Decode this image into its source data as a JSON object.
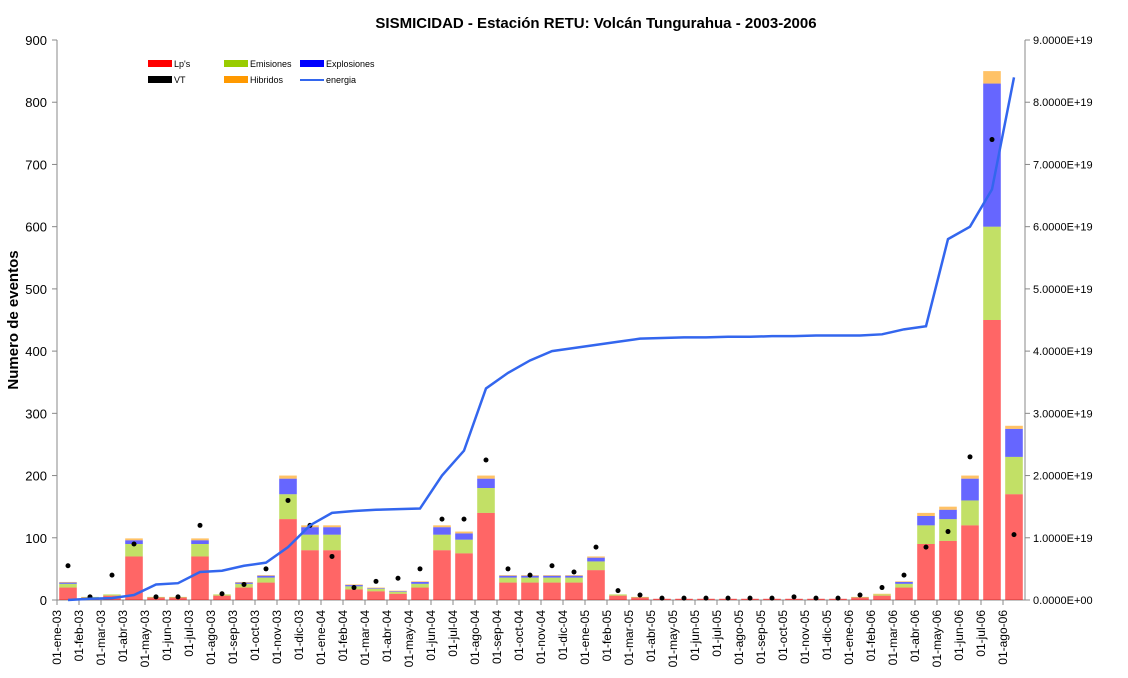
{
  "chart_data": {
    "type": "bar",
    "title": "SISMICIDAD - Estación RETU:    Volcán Tungurahua - 2003-2006",
    "y_label": "Numero de eventos",
    "categories": [
      "01-ene-03",
      "01-feb-03",
      "01-mar-03",
      "01-abr-03",
      "01-may-03",
      "01-jun-03",
      "01-jul-03",
      "01-ago-03",
      "01-sep-03",
      "01-oct-03",
      "01-nov-03",
      "01-dic-03",
      "01-ene-04",
      "01-feb-04",
      "01-mar-04",
      "01-abr-04",
      "01-may-04",
      "01-jun-04",
      "01-jul-04",
      "01-ago-04",
      "01-sep-04",
      "01-oct-04",
      "01-nov-04",
      "01-dic-04",
      "01-ene-05",
      "01-feb-05",
      "01-mar-05",
      "01-abr-05",
      "01-may-05",
      "01-jun-05",
      "01-jul-05",
      "01-ago-05",
      "01-sep-05",
      "01-oct-05",
      "01-nov-05",
      "01-dic-05",
      "01-ene-06",
      "01-feb-06",
      "01-mar-06",
      "01-abr-06",
      "01-may-06",
      "01-jun-06",
      "01-jul-06",
      "01-ago-06"
    ],
    "ylim": [
      0,
      900
    ],
    "yticks": [
      0,
      100,
      200,
      300,
      400,
      500,
      600,
      700,
      800,
      900
    ],
    "y2lim": [
      0,
      9e+19
    ],
    "y2ticks": [
      {
        "value": 0,
        "label": "0.0000E+00"
      },
      {
        "value": 1e+19,
        "label": "1.0000E+19"
      },
      {
        "value": 2e+19,
        "label": "2.0000E+19"
      },
      {
        "value": 3e+19,
        "label": "3.0000E+19"
      },
      {
        "value": 4e+19,
        "label": "4.0000E+19"
      },
      {
        "value": 5e+19,
        "label": "5.0000E+19"
      },
      {
        "value": 6e+19,
        "label": "6.0000E+19"
      },
      {
        "value": 7e+19,
        "label": "7.0000E+19"
      },
      {
        "value": 8e+19,
        "label": "8.0000E+19"
      },
      {
        "value": 9e+19,
        "label": "9.0000E+19"
      }
    ],
    "stacked": true,
    "grid": false,
    "legend": "upper-left",
    "series": [
      {
        "name": "Lp's",
        "color": "#ff0000",
        "type": "bar",
        "values": [
          20,
          4,
          7,
          70,
          4,
          4,
          70,
          7,
          20,
          28,
          130,
          80,
          80,
          17,
          14,
          10,
          20,
          80,
          75,
          140,
          28,
          28,
          28,
          28,
          48,
          7,
          4,
          2,
          2,
          2,
          2,
          2,
          2,
          2,
          2,
          2,
          4,
          7,
          20,
          90,
          95,
          120,
          450,
          170
        ]
      },
      {
        "name": "Emisiones",
        "color": "#99cc00",
        "type": "bar",
        "values": [
          6,
          1,
          2,
          20,
          1,
          1,
          20,
          2,
          6,
          8,
          40,
          25,
          25,
          5,
          4,
          3,
          6,
          25,
          22,
          40,
          8,
          8,
          8,
          8,
          14,
          2,
          1,
          0,
          0,
          0,
          0,
          0,
          0,
          0,
          0,
          0,
          1,
          2,
          6,
          30,
          35,
          40,
          150,
          60
        ]
      },
      {
        "name": "Explosiones",
        "color": "#0000ff",
        "type": "bar",
        "values": [
          2,
          0,
          0,
          6,
          0,
          0,
          6,
          0,
          2,
          3,
          25,
          12,
          12,
          2,
          1,
          1,
          3,
          12,
          10,
          15,
          3,
          3,
          3,
          3,
          6,
          0,
          0,
          0,
          0,
          0,
          0,
          0,
          0,
          0,
          0,
          0,
          0,
          0,
          3,
          15,
          15,
          35,
          230,
          45
        ]
      },
      {
        "name": "VT",
        "color": "#000000",
        "type": "dot",
        "values": [
          55,
          5,
          40,
          90,
          5,
          5,
          120,
          10,
          25,
          50,
          160,
          120,
          70,
          20,
          30,
          35,
          50,
          130,
          130,
          225,
          50,
          40,
          55,
          45,
          85,
          15,
          8,
          3,
          3,
          3,
          3,
          3,
          3,
          5,
          3,
          3,
          8,
          20,
          40,
          85,
          110,
          230,
          740,
          105
        ]
      },
      {
        "name": "Hibridos",
        "color": "#ff9900",
        "type": "bar",
        "values": [
          1,
          0,
          0,
          3,
          0,
          0,
          3,
          0,
          1,
          1,
          5,
          3,
          3,
          1,
          1,
          1,
          1,
          3,
          3,
          5,
          1,
          1,
          1,
          1,
          2,
          0,
          0,
          0,
          0,
          0,
          0,
          0,
          0,
          0,
          0,
          0,
          0,
          1,
          1,
          5,
          5,
          5,
          20,
          5
        ]
      },
      {
        "name": "energia",
        "color": "#3366ee",
        "type": "line",
        "axis": "y2",
        "values": [
          0,
          2e+17,
          3e+17,
          8e+17,
          2.5e+18,
          2.7e+18,
          4.5e+18,
          4.7e+18,
          5.5e+18,
          6e+18,
          8.5e+18,
          1.2e+19,
          1.4e+19,
          1.43e+19,
          1.45e+19,
          1.46e+19,
          1.47e+19,
          2e+19,
          2.4e+19,
          3.4e+19,
          3.65e+19,
          3.85e+19,
          4e+19,
          4.05e+19,
          4.1e+19,
          4.15e+19,
          4.2e+19,
          4.21e+19,
          4.22e+19,
          4.22e+19,
          4.23e+19,
          4.23e+19,
          4.24e+19,
          4.24e+19,
          4.25e+19,
          4.25e+19,
          4.25e+19,
          4.27e+19,
          4.35e+19,
          4.4e+19,
          5.8e+19,
          6e+19,
          6.6e+19,
          8.4e+19
        ]
      }
    ]
  }
}
